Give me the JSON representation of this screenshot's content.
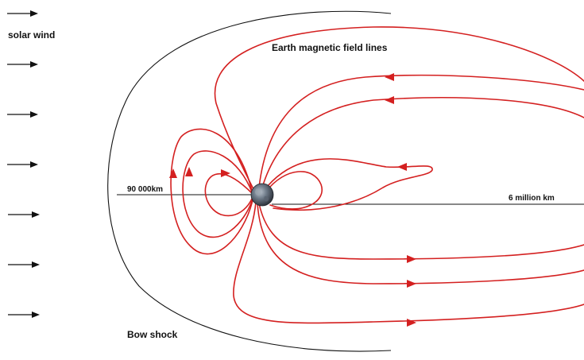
{
  "labels": {
    "solar_wind": "solar wind",
    "field_lines": "Earth magnetic field lines",
    "bow_shock": "Bow shock",
    "dayside_distance": "90 000km",
    "tail_distance": "6 million km"
  },
  "colors": {
    "field_line": "#d42020",
    "ink": "#111111"
  },
  "icons": {
    "earth": "earth-icon",
    "wind_arrow": "arrow-right-icon"
  }
}
